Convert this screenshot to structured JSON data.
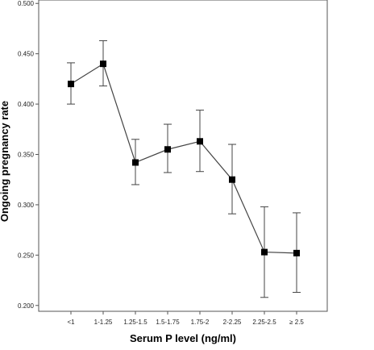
{
  "chart_data": {
    "type": "line",
    "title": "",
    "xlabel": "Serum P level (ng/ml)",
    "ylabel": "Ongoing pregnancy rate",
    "categories": [
      "<1",
      "1-1.25",
      "1.25-1.5",
      "1.5-1.75",
      "1.75-2",
      "2-2.25",
      "2.25-2.5",
      "≥ 2.5"
    ],
    "series": [
      {
        "values": [
          0.42,
          0.44,
          0.342,
          0.355,
          0.363,
          0.325,
          0.253,
          0.252
        ],
        "error_low": [
          0.4,
          0.418,
          0.32,
          0.332,
          0.333,
          0.291,
          0.208,
          0.213
        ],
        "error_high": [
          0.441,
          0.463,
          0.365,
          0.38,
          0.394,
          0.36,
          0.298,
          0.292
        ]
      }
    ],
    "ylim": [
      0.195,
      0.505
    ],
    "yticks": [
      "0.200",
      "0.250",
      "0.300",
      "0.350",
      "0.400",
      "0.450",
      "0.500"
    ],
    "grid": false,
    "colors": {
      "line": "#444444",
      "marker": "#000000",
      "axis": "#555555"
    }
  }
}
